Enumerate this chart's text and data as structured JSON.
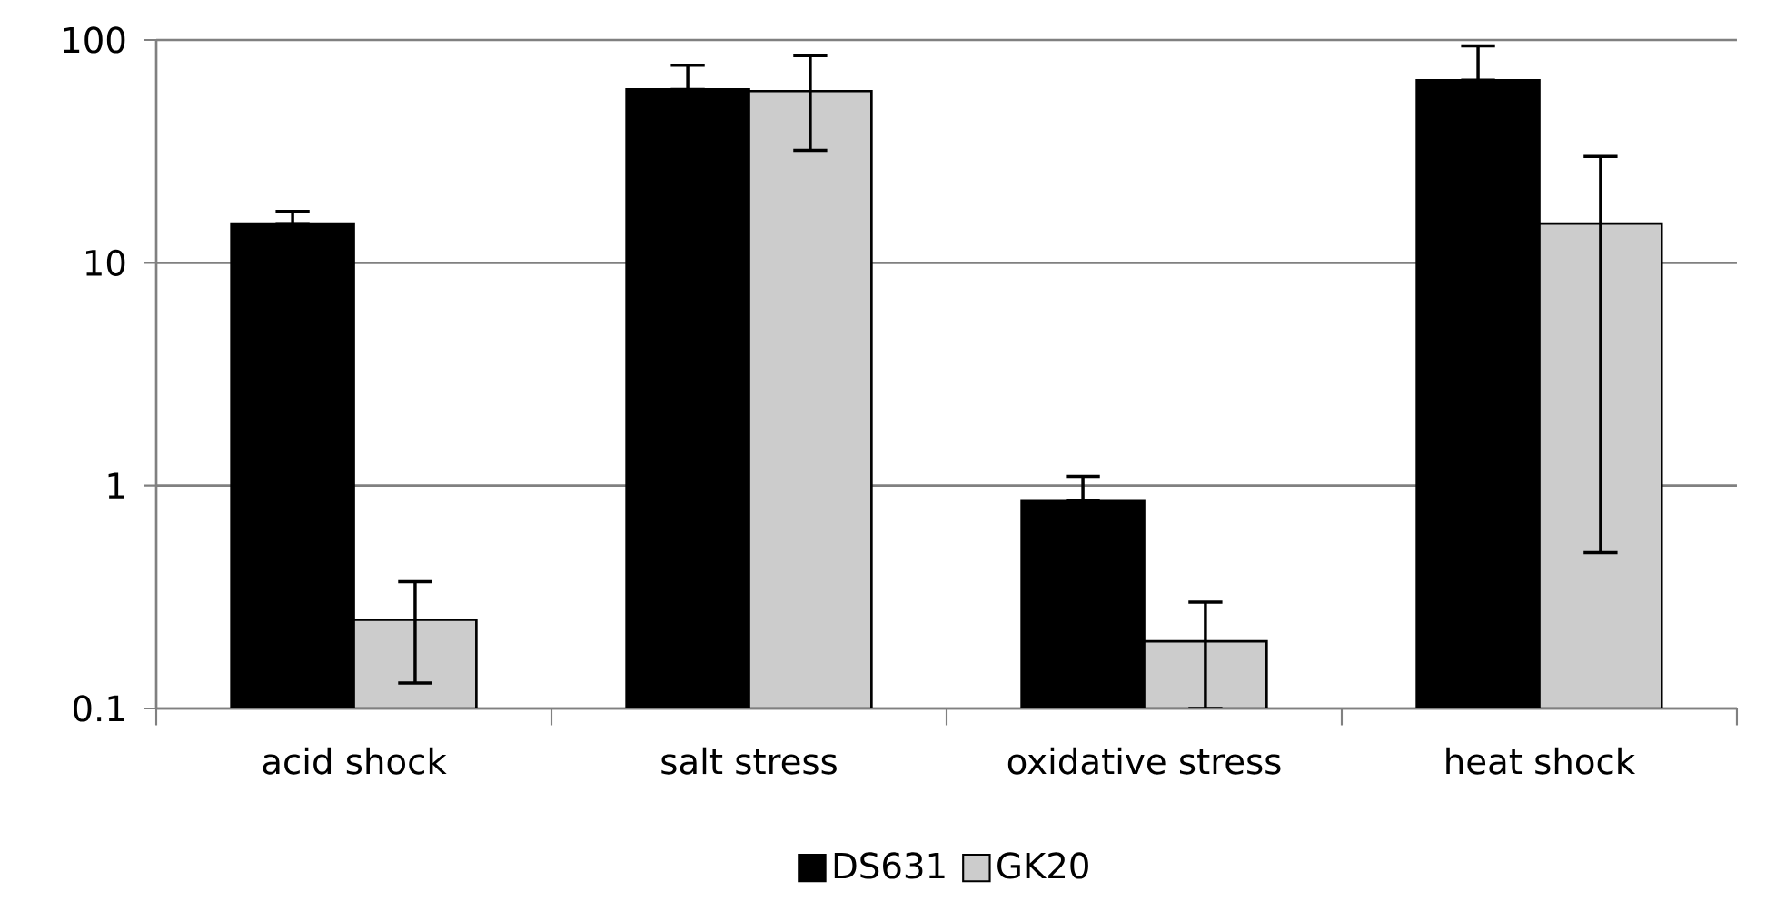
{
  "chart_data": {
    "type": "bar",
    "categories": [
      "acid shock",
      "salt stress",
      "oxidative stress",
      "heat shock"
    ],
    "series": [
      {
        "name": "DS631",
        "color": "#000000",
        "values": [
          15,
          60,
          0.86,
          66
        ],
        "errors": [
          [
            15,
            17
          ],
          [
            60,
            77
          ],
          [
            0.86,
            1.1
          ],
          [
            66,
            94
          ]
        ]
      },
      {
        "name": "GK20",
        "color": "#cccccc",
        "values": [
          0.25,
          59,
          0.2,
          15
        ],
        "errors": [
          [
            0.13,
            0.37
          ],
          [
            32,
            85
          ],
          [
            0.1,
            0.3
          ],
          [
            0.5,
            30
          ]
        ]
      }
    ],
    "log": true,
    "ylim": [
      0.1,
      100
    ],
    "yticks": [
      0.1,
      1,
      10,
      100
    ],
    "grid": "y",
    "legend": "bottom"
  }
}
